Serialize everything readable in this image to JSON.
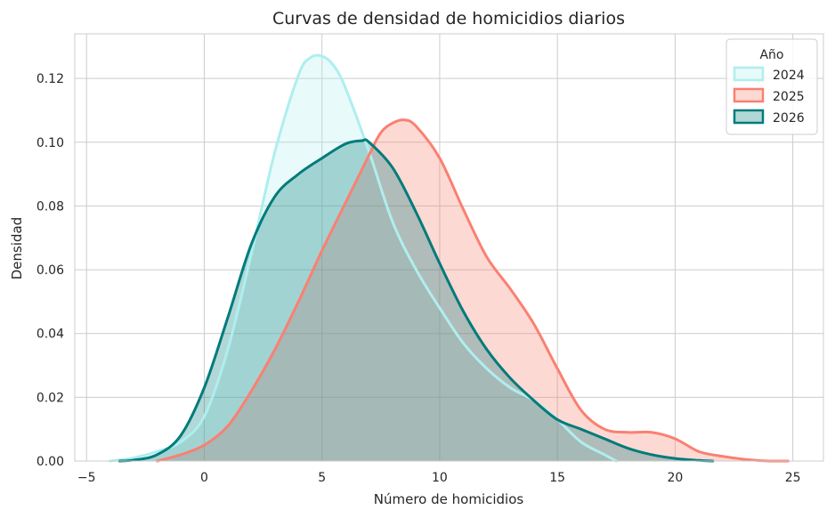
{
  "chart_data": {
    "type": "area",
    "title": "Curvas de densidad de homicidios diarios",
    "xlabel": "Número de homicidios",
    "ylabel": "Densidad",
    "xlim": [
      -5.5,
      26.3
    ],
    "ylim": [
      0,
      0.134
    ],
    "xticks": [
      -5,
      0,
      5,
      10,
      15,
      20,
      25
    ],
    "yticks": [
      0.0,
      0.02,
      0.04,
      0.06,
      0.08,
      0.1,
      0.12
    ],
    "xtick_labels": [
      "−5",
      "0",
      "5",
      "10",
      "15",
      "20",
      "25"
    ],
    "ytick_labels": [
      "0.00",
      "0.02",
      "0.04",
      "0.06",
      "0.08",
      "0.10",
      "0.12"
    ],
    "grid": true,
    "legend": {
      "title": "Año",
      "placement": "top-right"
    },
    "series": [
      {
        "name": "2024",
        "color": "#afeeee",
        "x": [
          -4,
          -3,
          -2,
          -1,
          0,
          1,
          2,
          3,
          4,
          4.5,
          5,
          5.5,
          6,
          7,
          8,
          9,
          10,
          11,
          12,
          13,
          14,
          15,
          16,
          17,
          17.5
        ],
        "y": [
          0,
          0.001,
          0.003,
          0.006,
          0.014,
          0.035,
          0.065,
          0.097,
          0.121,
          0.1265,
          0.127,
          0.124,
          0.117,
          0.097,
          0.075,
          0.06,
          0.048,
          0.037,
          0.029,
          0.023,
          0.019,
          0.013,
          0.006,
          0.002,
          0
        ]
      },
      {
        "name": "2025",
        "color": "#fa8072",
        "x": [
          -2,
          -1,
          0,
          1,
          2,
          3,
          4,
          5,
          6,
          7,
          7.5,
          8,
          8.5,
          9,
          10,
          11,
          12,
          13,
          14,
          15,
          16,
          17,
          18,
          19,
          20,
          21,
          22,
          23,
          24,
          24.8
        ],
        "y": [
          0,
          0.002,
          0.005,
          0.011,
          0.022,
          0.035,
          0.05,
          0.066,
          0.081,
          0.096,
          0.103,
          0.106,
          0.107,
          0.105,
          0.095,
          0.079,
          0.064,
          0.054,
          0.043,
          0.029,
          0.016,
          0.01,
          0.009,
          0.009,
          0.007,
          0.003,
          0.0015,
          0.0005,
          0,
          0
        ]
      },
      {
        "name": "2026",
        "color": "#007b7b",
        "x": [
          -3.6,
          -3,
          -2,
          -1,
          0,
          1,
          2,
          3,
          4,
          5,
          6,
          6.7,
          7,
          8,
          9,
          10,
          11,
          12,
          13,
          14,
          15,
          16,
          17,
          18,
          19,
          20,
          21,
          21.6
        ],
        "y": [
          0,
          0.0003,
          0.002,
          0.008,
          0.023,
          0.045,
          0.068,
          0.083,
          0.09,
          0.095,
          0.0995,
          0.1005,
          0.1,
          0.092,
          0.078,
          0.062,
          0.047,
          0.035,
          0.026,
          0.019,
          0.013,
          0.01,
          0.007,
          0.004,
          0.002,
          0.0008,
          0.0002,
          0
        ]
      }
    ]
  }
}
